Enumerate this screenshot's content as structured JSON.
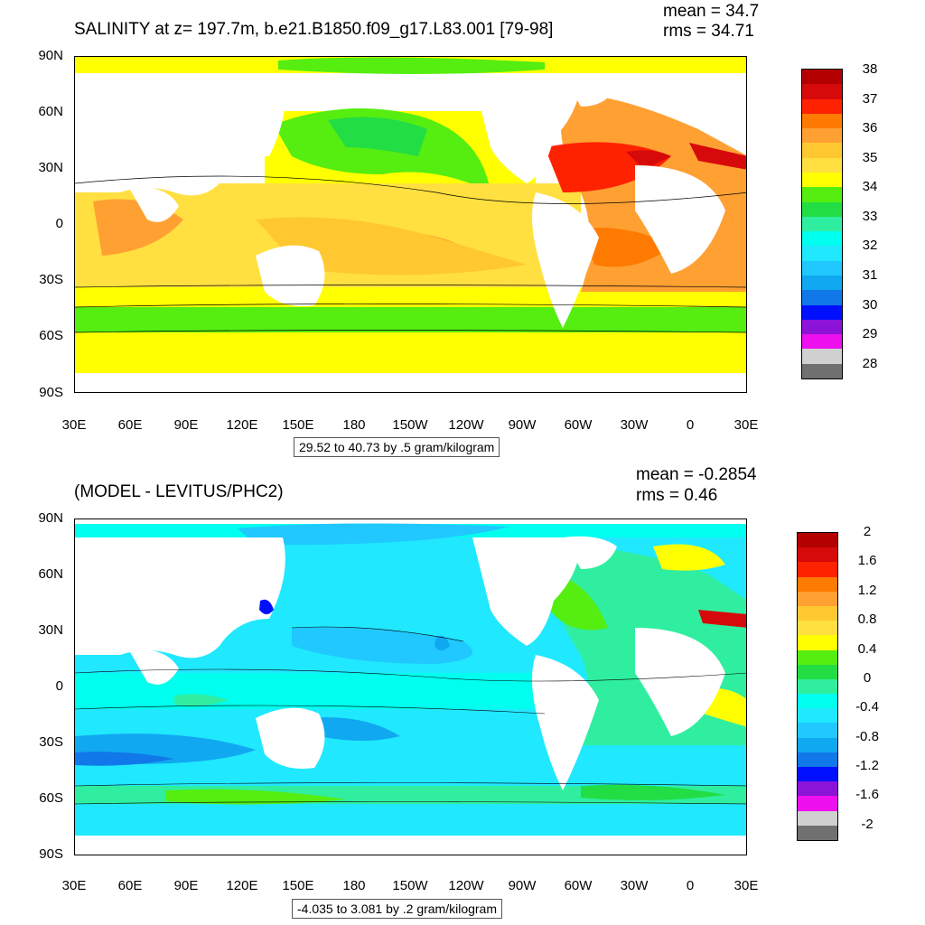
{
  "panels": [
    {
      "title": "SALINITY at z= 197.7m, b.e21.B1850.f09_g17.L83.001 [79-98]",
      "mean": "mean = 34.7",
      "rms": "rms = 34.71",
      "range_label": "29.52 to 40.73 by .5 gram/kilogram",
      "colorbar_labels": [
        "38",
        "37",
        "36",
        "35",
        "34",
        "33",
        "32",
        "31",
        "30",
        "29",
        "28"
      ],
      "colorbar_colors": [
        "#b40000",
        "#d60a0a",
        "#ff2200",
        "#ff7a00",
        "#ffa033",
        "#ffc830",
        "#ffe040",
        "#ffff00",
        "#55ee10",
        "#22dd44",
        "#30eea0",
        "#00ffee",
        "#20e8ff",
        "#20c8ff",
        "#10a8f0",
        "#1078e8",
        "#0010ff",
        "#8c14d8",
        "#ee10ee",
        "#d0d0d0",
        "#707070"
      ]
    },
    {
      "title": "(MODEL - LEVITUS/PHC2)",
      "mean": "mean = -0.2854",
      "rms": "rms = 0.46",
      "range_label": "-4.035 to 3.081 by .2 gram/kilogram",
      "colorbar_labels": [
        "2",
        "1.6",
        "1.2",
        "0.8",
        "0.4",
        "0",
        "-0.4",
        "-0.8",
        "-1.2",
        "-1.6",
        "-2"
      ],
      "colorbar_colors": [
        "#b40000",
        "#d60a0a",
        "#ff2200",
        "#ff7a00",
        "#ffa033",
        "#ffc830",
        "#ffe040",
        "#ffff00",
        "#55ee10",
        "#22dd44",
        "#30eea0",
        "#00ffee",
        "#20e8ff",
        "#20c8ff",
        "#10a8f0",
        "#1078e8",
        "#0010ff",
        "#8c14d8",
        "#ee10ee",
        "#d0d0d0",
        "#707070"
      ]
    }
  ],
  "axes": {
    "lat_labels": [
      "90N",
      "60N",
      "30N",
      "0",
      "30S",
      "60S",
      "90S"
    ],
    "lon_labels": [
      "30E",
      "60E",
      "90E",
      "120E",
      "150E",
      "180",
      "150W",
      "120W",
      "90W",
      "60W",
      "30W",
      "0",
      "30E"
    ]
  },
  "colors": {
    "land": "#ffffff",
    "coast_line": "#000000"
  }
}
